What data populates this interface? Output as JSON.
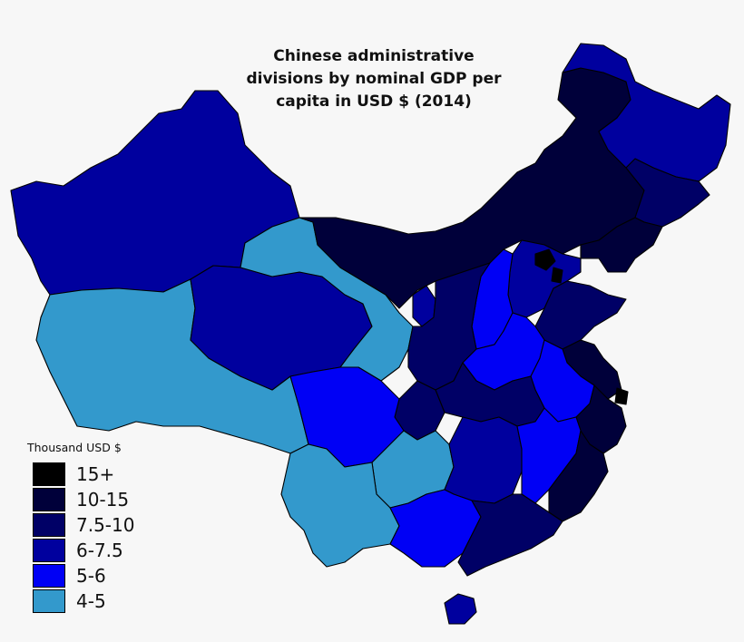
{
  "title": "Chinese administrative divisions by nominal GDP per capita in USD $ (2014)",
  "legend": {
    "heading": "Thousand USD $",
    "items": [
      {
        "label": "15+",
        "color": "#000000"
      },
      {
        "label": "10-15",
        "color": "#00003a"
      },
      {
        "label": "7.5-10",
        "color": "#000066"
      },
      {
        "label": "6-7.5",
        "color": "#00009e"
      },
      {
        "label": "5-6",
        "color": "#0000f5"
      },
      {
        "label": "4-5",
        "color": "#3399cc"
      }
    ]
  },
  "colors": {
    "c15": "#000000",
    "c10": "#00003a",
    "c75": "#000066",
    "c6": "#00009e",
    "c5": "#0000f5",
    "c4": "#3399cc"
  }
}
